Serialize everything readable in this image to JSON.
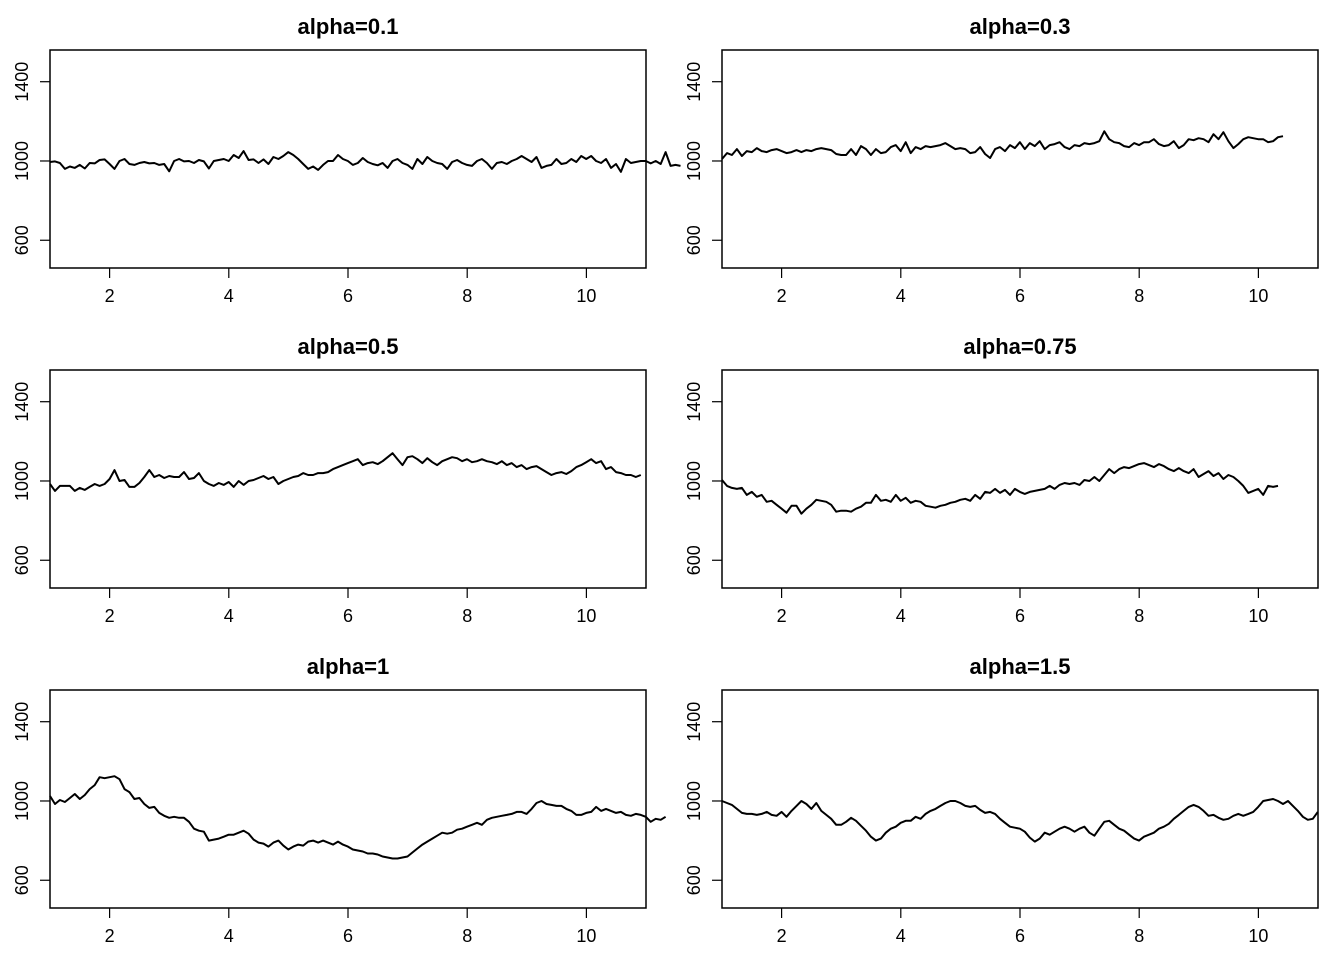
{
  "chart_data": [
    {
      "type": "line",
      "title": "alpha=0.1",
      "xlim": [
        1,
        11
      ],
      "ylim": [
        460,
        1560
      ],
      "xticks": [
        2,
        4,
        6,
        8,
        10
      ],
      "yticks": [
        600,
        1000,
        1400
      ],
      "x_start": 1,
      "x_step": 0.0833,
      "values": [
        995,
        998,
        990,
        960,
        972,
        965,
        980,
        962,
        990,
        988,
        1005,
        1008,
        985,
        960,
        1000,
        1010,
        985,
        980,
        990,
        995,
        988,
        990,
        980,
        985,
        948,
        1000,
        1010,
        998,
        1000,
        990,
        1005,
        998,
        962,
        1000,
        1005,
        1010,
        1000,
        1030,
        1015,
        1050,
        1005,
        1008,
        990,
        1008,
        985,
        1020,
        1010,
        1025,
        1045,
        1030,
        1010,
        985,
        960,
        972,
        955,
        980,
        1000,
        1000,
        1030,
        1010,
        1000,
        980,
        990,
        1015,
        995,
        985,
        978,
        990,
        965,
        1000,
        1010,
        990,
        980,
        960,
        1010,
        985,
        1020,
        1000,
        990,
        985,
        960,
        995,
        1005,
        990,
        980,
        975,
        1000,
        1010,
        990,
        960,
        990,
        995,
        985,
        1000,
        1010,
        1025,
        1010,
        995,
        1020,
        965,
        975,
        980,
        1010,
        985,
        990,
        1010,
        995,
        1025,
        1010,
        1025,
        1000,
        990,
        1010,
        965,
        985,
        945,
        1010,
        990,
        995,
        1000,
        1000,
        988,
        1000,
        985,
        1045,
        975,
        980,
        975
      ]
    },
    {
      "type": "line",
      "title": "alpha=0.3",
      "xlim": [
        1,
        11
      ],
      "ylim": [
        460,
        1560
      ],
      "xticks": [
        2,
        4,
        6,
        8,
        10
      ],
      "yticks": [
        600,
        1000,
        1400
      ],
      "x_start": 1,
      "x_step": 0.0833,
      "values": [
        1010,
        1040,
        1030,
        1060,
        1025,
        1050,
        1045,
        1065,
        1050,
        1045,
        1055,
        1060,
        1050,
        1040,
        1045,
        1055,
        1045,
        1055,
        1050,
        1060,
        1065,
        1060,
        1055,
        1035,
        1030,
        1030,
        1060,
        1030,
        1075,
        1060,
        1030,
        1060,
        1040,
        1045,
        1070,
        1080,
        1050,
        1095,
        1040,
        1070,
        1060,
        1075,
        1070,
        1075,
        1080,
        1090,
        1075,
        1060,
        1065,
        1060,
        1040,
        1045,
        1070,
        1035,
        1015,
        1060,
        1070,
        1050,
        1080,
        1065,
        1095,
        1060,
        1090,
        1075,
        1100,
        1060,
        1080,
        1085,
        1095,
        1070,
        1060,
        1080,
        1075,
        1090,
        1085,
        1090,
        1100,
        1150,
        1110,
        1095,
        1090,
        1075,
        1070,
        1090,
        1080,
        1095,
        1095,
        1110,
        1085,
        1075,
        1080,
        1100,
        1065,
        1080,
        1110,
        1105,
        1115,
        1110,
        1095,
        1135,
        1110,
        1145,
        1100,
        1065,
        1085,
        1110,
        1120,
        1115,
        1110,
        1110,
        1095,
        1100,
        1120,
        1125
      ]
    },
    {
      "type": "line",
      "title": "alpha=0.5",
      "xlim": [
        1,
        11
      ],
      "ylim": [
        460,
        1560
      ],
      "xticks": [
        2,
        4,
        6,
        8,
        10
      ],
      "yticks": [
        600,
        1000,
        1400
      ],
      "x_start": 1,
      "x_step": 0.0833,
      "values": [
        985,
        950,
        975,
        975,
        975,
        950,
        965,
        955,
        970,
        985,
        975,
        985,
        1010,
        1055,
        1000,
        1005,
        970,
        970,
        990,
        1020,
        1055,
        1020,
        1030,
        1015,
        1025,
        1020,
        1020,
        1045,
        1010,
        1015,
        1040,
        1000,
        985,
        975,
        990,
        980,
        995,
        970,
        1000,
        980,
        1000,
        1005,
        1015,
        1025,
        1010,
        1020,
        985,
        1000,
        1010,
        1020,
        1025,
        1040,
        1030,
        1030,
        1040,
        1040,
        1045,
        1060,
        1070,
        1080,
        1090,
        1100,
        1110,
        1080,
        1090,
        1095,
        1085,
        1100,
        1120,
        1140,
        1110,
        1080,
        1120,
        1125,
        1110,
        1090,
        1115,
        1095,
        1080,
        1100,
        1110,
        1120,
        1115,
        1100,
        1110,
        1095,
        1100,
        1110,
        1100,
        1095,
        1085,
        1100,
        1080,
        1090,
        1070,
        1080,
        1060,
        1070,
        1075,
        1060,
        1045,
        1030,
        1040,
        1045,
        1035,
        1050,
        1070,
        1080,
        1095,
        1110,
        1090,
        1100,
        1060,
        1070,
        1045,
        1040,
        1030,
        1030,
        1020,
        1030
      ]
    },
    {
      "type": "line",
      "title": "alpha=0.75",
      "xlim": [
        1,
        11
      ],
      "ylim": [
        460,
        1560
      ],
      "xticks": [
        2,
        4,
        6,
        8,
        10
      ],
      "yticks": [
        600,
        1000,
        1400
      ],
      "x_start": 1,
      "x_step": 0.0833,
      "values": [
        1005,
        975,
        965,
        960,
        965,
        930,
        945,
        920,
        930,
        895,
        900,
        880,
        860,
        840,
        875,
        875,
        835,
        860,
        880,
        905,
        900,
        895,
        880,
        845,
        850,
        850,
        845,
        860,
        870,
        890,
        890,
        930,
        900,
        905,
        895,
        930,
        900,
        915,
        890,
        900,
        895,
        875,
        870,
        865,
        875,
        880,
        890,
        895,
        905,
        910,
        900,
        930,
        910,
        945,
        940,
        960,
        940,
        955,
        930,
        960,
        945,
        935,
        945,
        950,
        955,
        960,
        975,
        960,
        980,
        990,
        985,
        990,
        980,
        1005,
        1000,
        1020,
        1000,
        1030,
        1060,
        1040,
        1060,
        1070,
        1065,
        1075,
        1085,
        1090,
        1080,
        1070,
        1085,
        1075,
        1060,
        1050,
        1065,
        1050,
        1040,
        1060,
        1020,
        1035,
        1050,
        1025,
        1040,
        1010,
        1030,
        1020,
        1000,
        975,
        940,
        950,
        960,
        930,
        975,
        970,
        975
      ]
    },
    {
      "type": "line",
      "title": "alpha=1",
      "xlim": [
        1,
        11
      ],
      "ylim": [
        460,
        1560
      ],
      "xticks": [
        2,
        4,
        6,
        8,
        10
      ],
      "yticks": [
        600,
        1000,
        1400
      ],
      "x_start": 1,
      "x_step": 0.0833,
      "values": [
        1025,
        985,
        1005,
        995,
        1015,
        1035,
        1010,
        1030,
        1060,
        1080,
        1120,
        1115,
        1120,
        1125,
        1110,
        1060,
        1045,
        1010,
        1015,
        985,
        965,
        970,
        940,
        925,
        915,
        920,
        915,
        915,
        895,
        860,
        850,
        845,
        800,
        805,
        810,
        820,
        830,
        830,
        840,
        850,
        835,
        805,
        790,
        785,
        770,
        790,
        800,
        775,
        755,
        770,
        780,
        775,
        795,
        800,
        790,
        800,
        790,
        780,
        795,
        780,
        770,
        755,
        750,
        745,
        735,
        735,
        730,
        720,
        715,
        710,
        710,
        715,
        720,
        740,
        760,
        780,
        795,
        810,
        825,
        840,
        835,
        840,
        855,
        860,
        870,
        880,
        890,
        880,
        905,
        915,
        920,
        925,
        930,
        935,
        945,
        945,
        935,
        960,
        990,
        1000,
        985,
        980,
        975,
        975,
        960,
        950,
        930,
        930,
        940,
        945,
        970,
        950,
        960,
        950,
        940,
        945,
        930,
        925,
        935,
        930,
        920,
        895,
        910,
        905,
        920
      ]
    },
    {
      "type": "line",
      "title": "alpha=1.5",
      "xlim": [
        1,
        11
      ],
      "ylim": [
        460,
        1560
      ],
      "xticks": [
        2,
        4,
        6,
        8,
        10
      ],
      "yticks": [
        600,
        1000,
        1400
      ],
      "x_start": 1,
      "x_step": 0.0833,
      "values": [
        1000,
        990,
        980,
        960,
        940,
        935,
        935,
        930,
        935,
        945,
        930,
        925,
        945,
        920,
        950,
        975,
        1000,
        985,
        960,
        990,
        950,
        930,
        910,
        880,
        880,
        895,
        915,
        900,
        875,
        850,
        820,
        800,
        810,
        840,
        860,
        870,
        890,
        900,
        900,
        920,
        910,
        935,
        950,
        960,
        975,
        990,
        1000,
        1000,
        990,
        975,
        970,
        975,
        955,
        940,
        945,
        935,
        910,
        890,
        870,
        865,
        860,
        845,
        815,
        795,
        810,
        840,
        830,
        845,
        860,
        870,
        860,
        845,
        860,
        870,
        840,
        825,
        860,
        895,
        900,
        880,
        860,
        850,
        830,
        810,
        800,
        820,
        830,
        840,
        860,
        870,
        885,
        910,
        930,
        950,
        970,
        980,
        970,
        950,
        925,
        930,
        915,
        905,
        910,
        925,
        935,
        925,
        935,
        945,
        970,
        1000,
        1005,
        1010,
        1000,
        985,
        1000,
        975,
        950,
        920,
        905,
        910,
        945
      ]
    }
  ]
}
